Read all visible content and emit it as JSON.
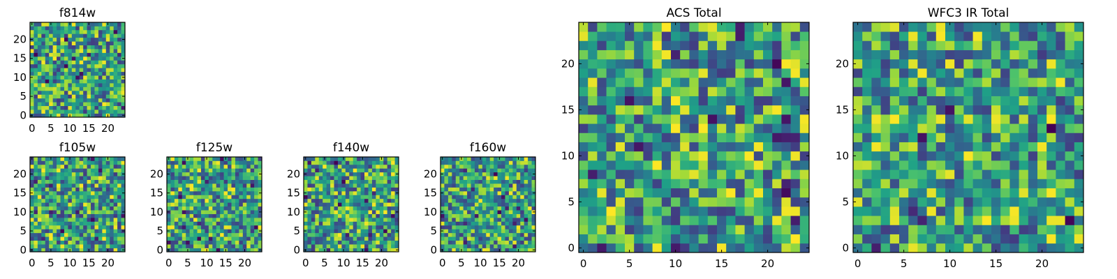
{
  "chart_data": [
    {
      "id": "f814w",
      "type": "heatmap",
      "title": "f814w",
      "grid_size": 25,
      "seed": 11,
      "x_ticks": [
        0,
        5,
        10,
        15,
        20
      ],
      "y_ticks": [
        0,
        5,
        10,
        15,
        20
      ],
      "x_tick_labels": [
        "0",
        "5",
        "10",
        "15",
        "20"
      ],
      "y_tick_labels": [
        "0",
        "5",
        "10",
        "15",
        "20"
      ],
      "xlim": [
        -0.5,
        24.5
      ],
      "ylim": [
        -0.5,
        24.5
      ],
      "colormap": "viridis",
      "value_range": [
        0,
        1
      ]
    },
    {
      "id": "f105w",
      "type": "heatmap",
      "title": "f105w",
      "grid_size": 25,
      "seed": 23,
      "x_ticks": [
        0,
        5,
        10,
        15,
        20
      ],
      "y_ticks": [
        0,
        5,
        10,
        15,
        20
      ],
      "x_tick_labels": [
        "0",
        "5",
        "10",
        "15",
        "20"
      ],
      "y_tick_labels": [
        "0",
        "5",
        "10",
        "15",
        "20"
      ],
      "xlim": [
        -0.5,
        24.5
      ],
      "ylim": [
        -0.5,
        24.5
      ],
      "colormap": "viridis",
      "value_range": [
        0,
        1
      ]
    },
    {
      "id": "f125w",
      "type": "heatmap",
      "title": "f125w",
      "grid_size": 25,
      "seed": 37,
      "x_ticks": [
        0,
        5,
        10,
        15,
        20
      ],
      "y_ticks": [
        0,
        5,
        10,
        15,
        20
      ],
      "x_tick_labels": [
        "0",
        "5",
        "10",
        "15",
        "20"
      ],
      "y_tick_labels": [
        "0",
        "5",
        "10",
        "15",
        "20"
      ],
      "xlim": [
        -0.5,
        24.5
      ],
      "ylim": [
        -0.5,
        24.5
      ],
      "colormap": "viridis",
      "value_range": [
        0,
        1
      ]
    },
    {
      "id": "f140w",
      "type": "heatmap",
      "title": "f140w",
      "grid_size": 25,
      "seed": 41,
      "x_ticks": [
        0,
        5,
        10,
        15,
        20
      ],
      "y_ticks": [
        0,
        5,
        10,
        15,
        20
      ],
      "x_tick_labels": [
        "0",
        "5",
        "10",
        "15",
        "20"
      ],
      "y_tick_labels": [
        "0",
        "5",
        "10",
        "15",
        "20"
      ],
      "xlim": [
        -0.5,
        24.5
      ],
      "ylim": [
        -0.5,
        24.5
      ],
      "colormap": "viridis",
      "value_range": [
        0,
        1
      ]
    },
    {
      "id": "f160w",
      "type": "heatmap",
      "title": "f160w",
      "grid_size": 25,
      "seed": 53,
      "x_ticks": [
        0,
        5,
        10,
        15,
        20
      ],
      "y_ticks": [
        0,
        5,
        10,
        15,
        20
      ],
      "x_tick_labels": [
        "0",
        "5",
        "10",
        "15",
        "20"
      ],
      "y_tick_labels": [
        "0",
        "5",
        "10",
        "15",
        "20"
      ],
      "xlim": [
        -0.5,
        24.5
      ],
      "ylim": [
        -0.5,
        24.5
      ],
      "colormap": "viridis",
      "value_range": [
        0,
        1
      ]
    },
    {
      "id": "acs-total",
      "type": "heatmap",
      "title": "ACS Total",
      "grid_size": 25,
      "seed": 67,
      "x_ticks": [
        0,
        5,
        10,
        15,
        20
      ],
      "y_ticks": [
        0,
        5,
        10,
        15,
        20
      ],
      "x_tick_labels": [
        "0",
        "5",
        "10",
        "15",
        "20"
      ],
      "y_tick_labels": [
        "0",
        "5",
        "10",
        "15",
        "20"
      ],
      "xlim": [
        -0.5,
        24.5
      ],
      "ylim": [
        -0.5,
        24.5
      ],
      "colormap": "viridis",
      "value_range": [
        0,
        1
      ]
    },
    {
      "id": "wfc3-ir-total",
      "type": "heatmap",
      "title": "WFC3 IR Total",
      "grid_size": 25,
      "seed": 79,
      "x_ticks": [
        0,
        5,
        10,
        15,
        20
      ],
      "y_ticks": [
        0,
        5,
        10,
        15,
        20
      ],
      "x_tick_labels": [
        "0",
        "5",
        "10",
        "15",
        "20"
      ],
      "y_tick_labels": [
        "0",
        "5",
        "10",
        "15",
        "20"
      ],
      "xlim": [
        -0.5,
        24.5
      ],
      "ylim": [
        -0.5,
        24.5
      ],
      "colormap": "viridis",
      "value_range": [
        0,
        1
      ]
    }
  ]
}
